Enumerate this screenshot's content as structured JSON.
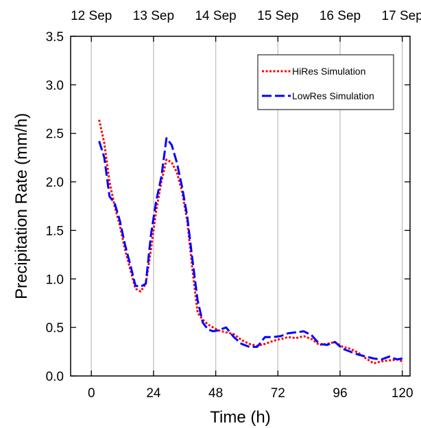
{
  "chart_data": {
    "type": "line",
    "xlabel": "Time (h)",
    "ylabel": "Precipitation Rate (mm/h)",
    "xlim": [
      -8,
      123
    ],
    "ylim": [
      0,
      3.5
    ],
    "x_ticks": [
      0,
      24,
      48,
      72,
      96,
      120
    ],
    "x_tick_labels": [
      "0",
      "24",
      "48",
      "72",
      "96",
      "120"
    ],
    "y_ticks": [
      0,
      0.5,
      1.0,
      1.5,
      2.0,
      2.5,
      3.0,
      3.5
    ],
    "y_tick_labels": [
      "0.0",
      "0.5",
      "1.0",
      "1.5",
      "2.0",
      "2.5",
      "3.0",
      "3.5"
    ],
    "top_axis": {
      "ticks": [
        0,
        24,
        48,
        72,
        96,
        120
      ],
      "labels": [
        "12 Sep",
        "13 Sep",
        "14 Sep",
        "15 Sep",
        "16 Sep",
        "17 Sep"
      ]
    },
    "vertical_grid": true,
    "legend_position": "top-right",
    "series": [
      {
        "name": "HiRes Simulation",
        "color": "#ff0000",
        "style": "dotted",
        "x": [
          3,
          5,
          7,
          9,
          11,
          13,
          15,
          17,
          19,
          21,
          23,
          25,
          27,
          29,
          31,
          33,
          35,
          37,
          39,
          41,
          43,
          45,
          47,
          49,
          52,
          55,
          58,
          61,
          64,
          67,
          70,
          73,
          76,
          79,
          82,
          85,
          88,
          91,
          94,
          97,
          100,
          103,
          106,
          109,
          112,
          115,
          118,
          120
        ],
        "y": [
          2.64,
          2.4,
          2.0,
          1.75,
          1.55,
          1.3,
          1.1,
          0.9,
          0.87,
          0.95,
          1.3,
          1.7,
          2.0,
          2.23,
          2.2,
          2.1,
          1.9,
          1.6,
          1.1,
          0.65,
          0.58,
          0.53,
          0.5,
          0.47,
          0.45,
          0.43,
          0.37,
          0.33,
          0.31,
          0.33,
          0.36,
          0.38,
          0.4,
          0.39,
          0.41,
          0.38,
          0.32,
          0.33,
          0.35,
          0.3,
          0.28,
          0.24,
          0.18,
          0.13,
          0.15,
          0.16,
          0.17,
          0.15
        ]
      },
      {
        "name": "LowRes Simulation",
        "color": "#0000ff",
        "style": "dashed",
        "x": [
          3,
          5,
          7,
          9,
          11,
          13,
          15,
          17,
          19,
          21,
          23,
          25,
          27,
          29,
          31,
          33,
          35,
          37,
          39,
          41,
          43,
          45,
          47,
          49,
          52,
          55,
          58,
          61,
          64,
          67,
          70,
          73,
          76,
          79,
          82,
          85,
          88,
          91,
          94,
          97,
          100,
          103,
          106,
          109,
          112,
          115,
          118,
          120
        ],
        "y": [
          2.42,
          2.25,
          1.85,
          1.78,
          1.6,
          1.35,
          1.15,
          0.93,
          0.92,
          0.95,
          1.45,
          1.8,
          2.05,
          2.45,
          2.38,
          2.2,
          1.95,
          1.65,
          1.2,
          0.78,
          0.55,
          0.48,
          0.46,
          0.47,
          0.5,
          0.4,
          0.33,
          0.3,
          0.3,
          0.4,
          0.4,
          0.41,
          0.44,
          0.45,
          0.46,
          0.42,
          0.33,
          0.32,
          0.35,
          0.28,
          0.25,
          0.22,
          0.2,
          0.18,
          0.17,
          0.2,
          0.17,
          0.18
        ]
      }
    ]
  }
}
